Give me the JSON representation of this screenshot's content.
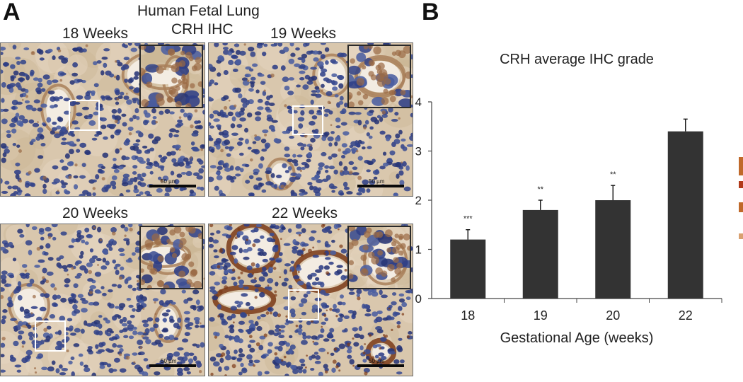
{
  "panel_a": {
    "letter": "A",
    "title_line1": "Human Fetal Lung",
    "title_line2": "CRH IHC",
    "images": [
      {
        "label": "18 Weeks",
        "scale": "50 µm"
      },
      {
        "label": "19 Weeks",
        "scale": "50 µm"
      },
      {
        "label": "20 Weeks",
        "scale": "50 µm"
      },
      {
        "label": "22 Weeks",
        "scale": "50 µm"
      }
    ]
  },
  "panel_b": {
    "letter": "B"
  },
  "chart_data": {
    "type": "bar",
    "title": "CRH average IHC grade",
    "xlabel": "Gestational Age (weeks)",
    "ylabel": "",
    "categories": [
      "18",
      "19",
      "20",
      "22"
    ],
    "values": [
      1.2,
      1.8,
      2.0,
      3.4
    ],
    "error": [
      0.2,
      0.2,
      0.3,
      0.25
    ],
    "significance": [
      "***",
      "**",
      "**",
      ""
    ],
    "ylim": [
      0,
      4
    ],
    "yticks": [
      "0",
      "1",
      "2",
      "3",
      "4"
    ],
    "grid": false,
    "bar_color": "#333333"
  },
  "colors": {
    "hematoxylin": "#3d4f8f",
    "dab_brown": "#8a4a22",
    "background_stain": "#d8c5a8"
  }
}
